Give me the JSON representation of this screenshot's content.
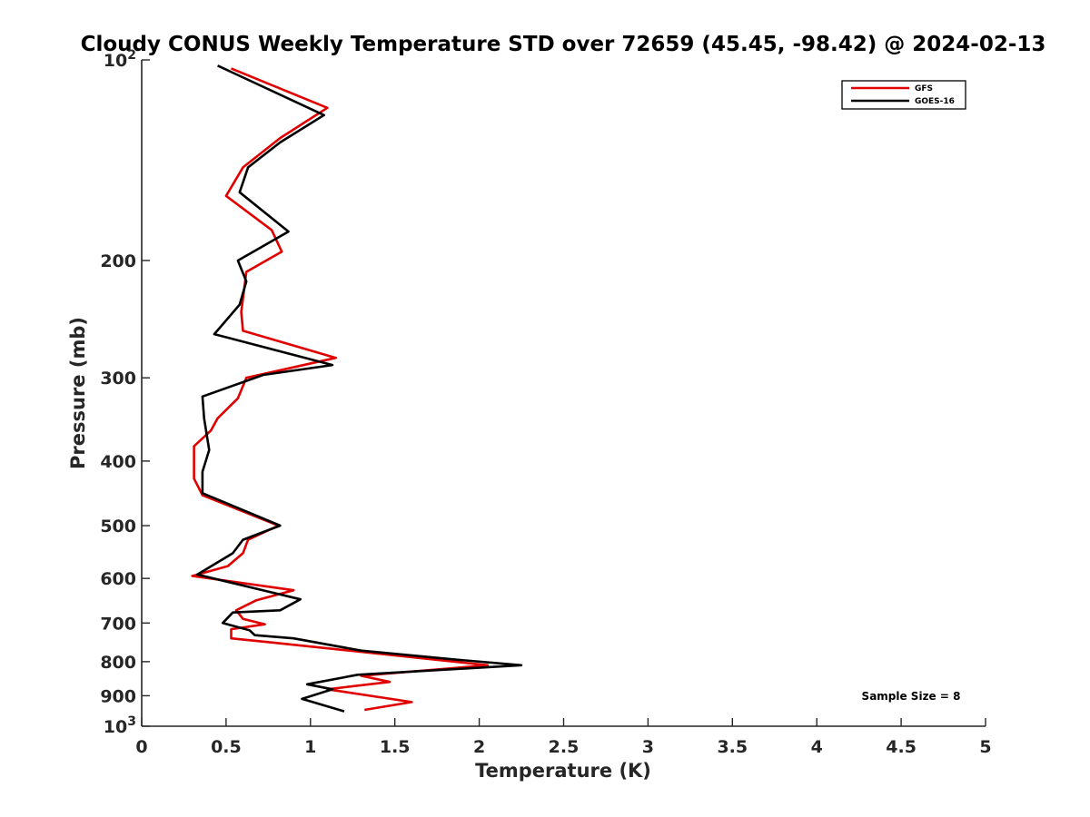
{
  "chart_data": {
    "type": "line",
    "title": "Cloudy CONUS Weekly Temperature STD over 72659 (45.45, -98.42) @ 2024-02-13",
    "xlabel": "Temperature (K)",
    "ylabel": "Pressure (mb)",
    "xlim": [
      0,
      5
    ],
    "ylim": [
      100,
      1000
    ],
    "y_scale": "log",
    "y_reversed": true,
    "x_ticks": [
      0,
      0.5,
      1,
      1.5,
      2,
      2.5,
      3,
      3.5,
      4,
      4.5,
      5
    ],
    "x_tick_labels": [
      "0",
      "0.5",
      "1",
      "1.5",
      "2",
      "2.5",
      "3",
      "3.5",
      "4",
      "4.5",
      "5"
    ],
    "y_ticks": [
      100,
      200,
      300,
      400,
      500,
      600,
      700,
      800,
      900,
      1000
    ],
    "y_tick_labels": [
      "10^2",
      "200",
      "300",
      "400",
      "500",
      "600",
      "700",
      "800",
      "900",
      "10^3"
    ],
    "grid": false,
    "legend_position": "top-right",
    "annotation": "Sample Size = 8",
    "series": [
      {
        "name": "GFS",
        "color": "#e00000",
        "x": [
          0.53,
          1.1,
          0.82,
          0.6,
          0.5,
          0.77,
          0.83,
          0.62,
          0.59,
          0.6,
          1.15,
          0.62,
          0.57,
          0.45,
          0.41,
          0.31,
          0.31,
          0.31,
          0.36,
          0.81,
          0.63,
          0.6,
          0.51,
          0.3,
          0.9,
          0.68,
          0.56,
          0.6,
          0.73,
          0.53,
          0.53,
          0.8,
          2.05,
          1.3,
          1.47,
          1.1,
          1.6,
          1.32
        ],
        "y": [
          103,
          118,
          131,
          145,
          160,
          180,
          194,
          208,
          239,
          255,
          280,
          300,
          322,
          345,
          360,
          380,
          410,
          425,
          450,
          500,
          525,
          550,
          575,
          595,
          625,
          647,
          670,
          690,
          703,
          715,
          738,
          750,
          810,
          840,
          858,
          880,
          920,
          945
        ]
      },
      {
        "name": "GOES-16",
        "color": "#000000",
        "x": [
          0.45,
          1.08,
          0.82,
          0.63,
          0.58,
          0.87,
          0.57,
          0.62,
          0.58,
          0.43,
          1.13,
          0.72,
          0.36,
          0.37,
          0.4,
          0.36,
          0.36,
          0.82,
          0.6,
          0.54,
          0.33,
          0.6,
          0.94,
          0.82,
          0.54,
          0.48,
          0.64,
          0.67,
          0.9,
          1.3,
          1.88,
          2.25,
          1.28,
          0.98,
          1.13,
          0.95,
          1.2
        ],
        "y": [
          102,
          121,
          133,
          145,
          158,
          181,
          200,
          215,
          233,
          258,
          287,
          297,
          320,
          345,
          385,
          415,
          447,
          500,
          525,
          550,
          592,
          615,
          645,
          670,
          675,
          700,
          718,
          730,
          738,
          770,
          795,
          810,
          837,
          865,
          880,
          910,
          950
        ]
      }
    ]
  }
}
